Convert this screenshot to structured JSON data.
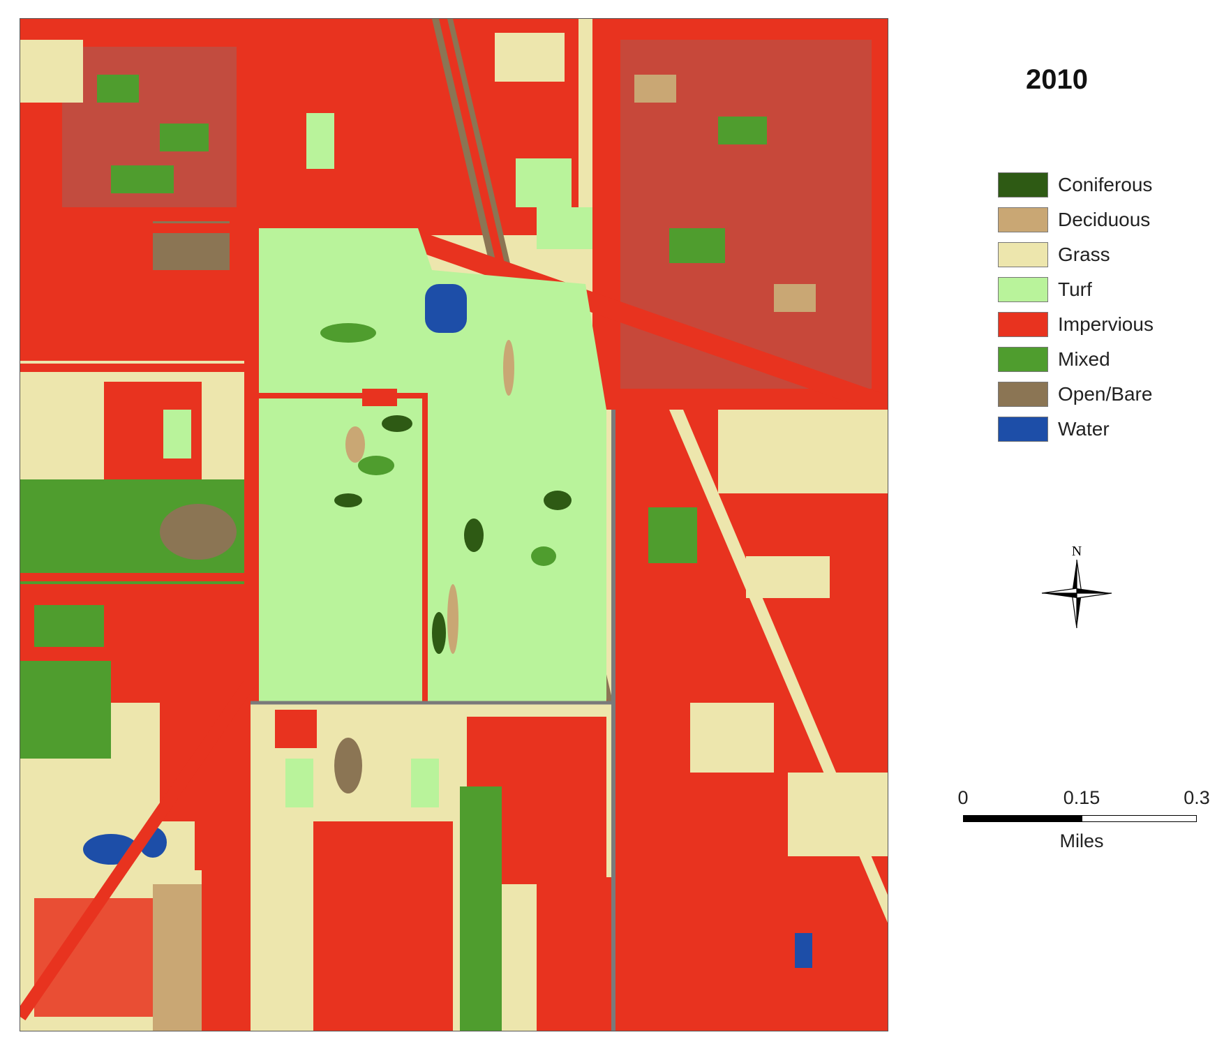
{
  "map": {
    "title": "2010",
    "colors": {
      "coniferous": "#2e5a14",
      "deciduous": "#c9a774",
      "grass": "#ede6ad",
      "turf": "#b9f39b",
      "impervious": "#e8331f",
      "mixed": "#4f9d2e",
      "open_bare": "#8b7554",
      "water": "#1d4ea8",
      "roads": "#7a7a7a"
    }
  },
  "legend": {
    "items": [
      {
        "label": "Coniferous",
        "color": "#2e5a14"
      },
      {
        "label": "Deciduous",
        "color": "#c9a774"
      },
      {
        "label": "Grass",
        "color": "#ede6ad"
      },
      {
        "label": "Turf",
        "color": "#b9f39b"
      },
      {
        "label": "Impervious",
        "color": "#e8331f"
      },
      {
        "label": "Mixed",
        "color": "#4f9d2e"
      },
      {
        "label": "Open/Bare",
        "color": "#8b7554"
      },
      {
        "label": "Water",
        "color": "#1d4ea8"
      }
    ]
  },
  "north_arrow": {
    "label": "N",
    "icon": "compass-rose-icon"
  },
  "scale_bar": {
    "ticks": [
      "0",
      "0.15",
      "0.3"
    ],
    "units": "Miles"
  }
}
